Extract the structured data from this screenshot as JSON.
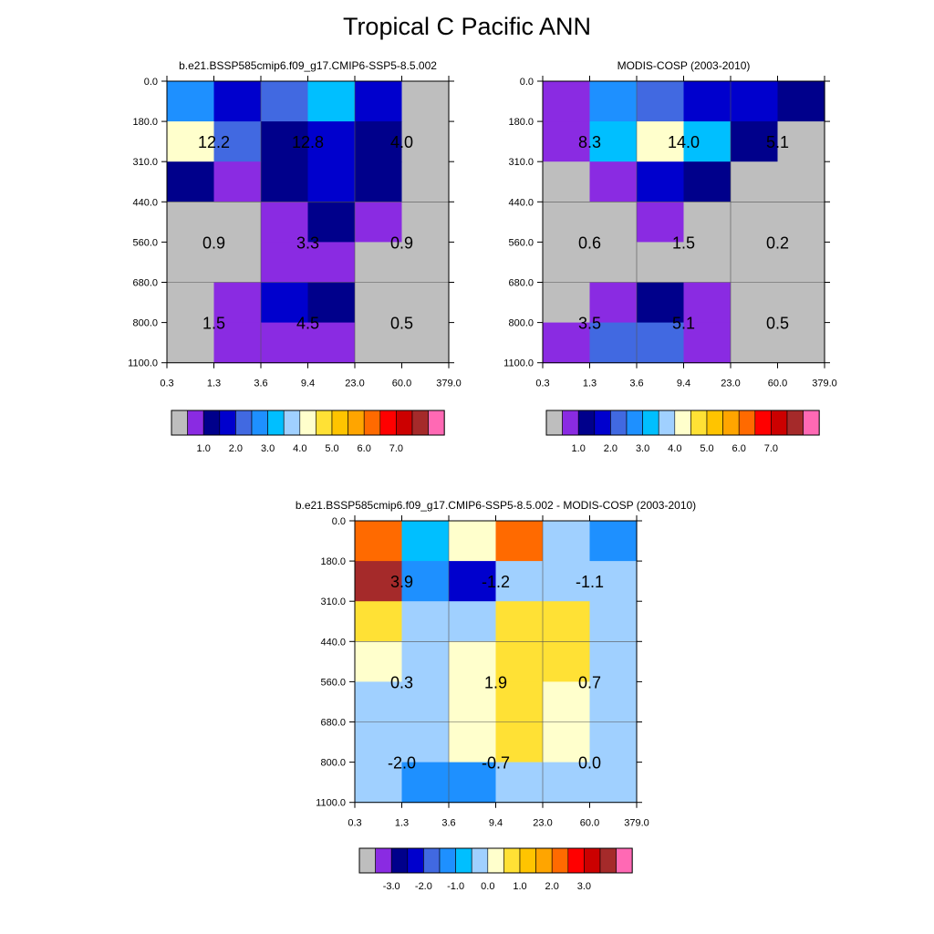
{
  "title": "Tropical C Pacific ANN",
  "palette": [
    "#bebebe",
    "#8a2be2",
    "#00008b",
    "#0000cd",
    "#4169e1",
    "#1e90ff",
    "#00bfff",
    "#a0d0ff",
    "#ffffcc",
    "#ffe135",
    "#ffc400",
    "#ffa500",
    "#ff6a00",
    "#ff0000",
    "#cc0000",
    "#a52a2a",
    "#ff69b4"
  ],
  "chart_data": [
    {
      "type": "heatmap",
      "title": "b.e21.BSSP585cmip6.f09_g17.CMIP6-SSP5-8.5.002",
      "x_ticks": [
        "0.3",
        "1.3",
        "3.6",
        "9.4",
        "23.0",
        "60.0",
        "379.0"
      ],
      "y_ticks": [
        "0.0",
        "180.0",
        "310.0",
        "440.0",
        "560.0",
        "680.0",
        "800.0",
        "1100.0"
      ],
      "cell_colors": [
        [
          5,
          3,
          4,
          6,
          3,
          0
        ],
        [
          8,
          4,
          2,
          3,
          2,
          0
        ],
        [
          2,
          1,
          2,
          3,
          2,
          0
        ],
        [
          0,
          0,
          1,
          2,
          1,
          0
        ],
        [
          0,
          0,
          1,
          1,
          0,
          0
        ],
        [
          0,
          1,
          3,
          2,
          0,
          0
        ],
        [
          0,
          1,
          1,
          1,
          0,
          0
        ]
      ],
      "values": [
        {
          "label": "12.2",
          "col": 1,
          "row": 1.5
        },
        {
          "label": "12.8",
          "col": 3,
          "row": 1.5
        },
        {
          "label": "4.0",
          "col": 5,
          "row": 1.5
        },
        {
          "label": "0.9",
          "col": 1,
          "row": 4
        },
        {
          "label": "3.3",
          "col": 3,
          "row": 4
        },
        {
          "label": "0.9",
          "col": 5,
          "row": 4
        },
        {
          "label": "1.5",
          "col": 1,
          "row": 6
        },
        {
          "label": "4.5",
          "col": 3,
          "row": 6
        },
        {
          "label": "0.5",
          "col": 5,
          "row": 6
        }
      ],
      "colorbar_labels": [
        "1.0",
        "2.0",
        "3.0",
        "4.0",
        "5.0",
        "6.0",
        "7.0"
      ]
    },
    {
      "type": "heatmap",
      "title": "MODIS-COSP (2003-2010)",
      "x_ticks": [
        "0.3",
        "1.3",
        "3.6",
        "9.4",
        "23.0",
        "60.0",
        "379.0"
      ],
      "y_ticks": [
        "0.0",
        "180.0",
        "310.0",
        "440.0",
        "560.0",
        "680.0",
        "800.0",
        "1100.0"
      ],
      "cell_colors": [
        [
          1,
          5,
          4,
          3,
          3,
          2
        ],
        [
          1,
          6,
          8,
          6,
          2,
          0
        ],
        [
          0,
          1,
          3,
          2,
          0,
          0
        ],
        [
          0,
          0,
          1,
          0,
          0,
          0
        ],
        [
          0,
          0,
          0,
          0,
          0,
          0
        ],
        [
          0,
          1,
          2,
          1,
          0,
          0
        ],
        [
          1,
          4,
          4,
          1,
          0,
          0
        ]
      ],
      "values": [
        {
          "label": "8.3",
          "col": 1,
          "row": 1.5
        },
        {
          "label": "14.0",
          "col": 3,
          "row": 1.5
        },
        {
          "label": "5.1",
          "col": 5,
          "row": 1.5
        },
        {
          "label": "0.6",
          "col": 1,
          "row": 4
        },
        {
          "label": "1.5",
          "col": 3,
          "row": 4
        },
        {
          "label": "0.2",
          "col": 5,
          "row": 4
        },
        {
          "label": "3.5",
          "col": 1,
          "row": 6
        },
        {
          "label": "5.1",
          "col": 3,
          "row": 6
        },
        {
          "label": "0.5",
          "col": 5,
          "row": 6
        }
      ],
      "colorbar_labels": [
        "1.0",
        "2.0",
        "3.0",
        "4.0",
        "5.0",
        "6.0",
        "7.0"
      ]
    },
    {
      "type": "heatmap",
      "title": "b.e21.BSSP585cmip6.f09_g17.CMIP6-SSP5-8.5.002 - MODIS-COSP (2003-2010)",
      "x_ticks": [
        "0.3",
        "1.3",
        "3.6",
        "9.4",
        "23.0",
        "60.0",
        "379.0"
      ],
      "y_ticks": [
        "0.0",
        "180.0",
        "310.0",
        "440.0",
        "560.0",
        "680.0",
        "800.0",
        "1100.0"
      ],
      "cell_colors": [
        [
          12,
          6,
          8,
          12,
          7,
          5
        ],
        [
          15,
          5,
          3,
          7,
          7,
          7
        ],
        [
          9,
          7,
          7,
          9,
          9,
          7
        ],
        [
          8,
          7,
          8,
          9,
          9,
          7
        ],
        [
          7,
          7,
          8,
          9,
          8,
          7
        ],
        [
          7,
          7,
          8,
          9,
          8,
          7
        ],
        [
          7,
          5,
          5,
          7,
          7,
          7
        ]
      ],
      "values": [
        {
          "label": "3.9",
          "col": 1,
          "row": 1.5
        },
        {
          "label": "-1.2",
          "col": 3,
          "row": 1.5
        },
        {
          "label": "-1.1",
          "col": 5,
          "row": 1.5
        },
        {
          "label": "0.3",
          "col": 1,
          "row": 4
        },
        {
          "label": "1.9",
          "col": 3,
          "row": 4
        },
        {
          "label": "0.7",
          "col": 5,
          "row": 4
        },
        {
          "label": "-2.0",
          "col": 1,
          "row": 6
        },
        {
          "label": "-0.7",
          "col": 3,
          "row": 6
        },
        {
          "label": "0.0",
          "col": 5,
          "row": 6
        }
      ],
      "colorbar_labels": [
        "-3.0",
        "-2.0",
        "-1.0",
        "0.0",
        "1.0",
        "2.0",
        "3.0"
      ]
    }
  ]
}
